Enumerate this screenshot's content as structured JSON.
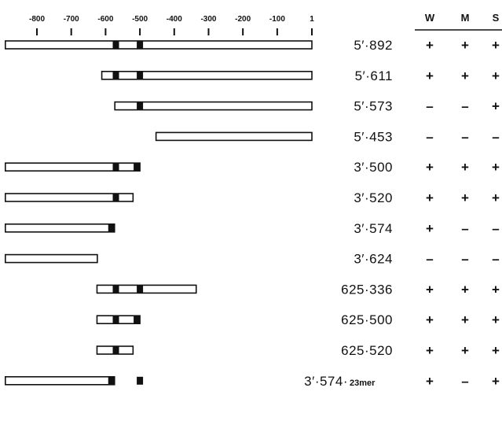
{
  "axis": {
    "ticks": [
      {
        "value": -800,
        "label": "-800"
      },
      {
        "value": -700,
        "label": "-700"
      },
      {
        "value": -600,
        "label": "-600"
      },
      {
        "value": -500,
        "label": "-500"
      },
      {
        "value": -400,
        "label": "-400"
      },
      {
        "value": -300,
        "label": "-300"
      },
      {
        "value": -200,
        "label": "-200"
      },
      {
        "value": -100,
        "label": "-100"
      },
      {
        "value": 1,
        "label": "1"
      }
    ]
  },
  "columns": [
    {
      "key": "W",
      "label": "W"
    },
    {
      "key": "M",
      "label": "M"
    },
    {
      "key": "S",
      "label": "S"
    }
  ],
  "rows": [
    {
      "label": "5′·892",
      "suffix": "",
      "start": -892,
      "end": 1,
      "black_boxes": [
        -570,
        -500
      ],
      "results": [
        "+",
        "+",
        "+"
      ]
    },
    {
      "label": "5′·611",
      "suffix": "",
      "start": -611,
      "end": 1,
      "black_boxes": [
        -570,
        -500
      ],
      "results": [
        "+",
        "+",
        "+"
      ]
    },
    {
      "label": "5′·573",
      "suffix": "",
      "start": -573,
      "end": 1,
      "black_boxes": [
        -500
      ],
      "results": [
        "–",
        "–",
        "+"
      ]
    },
    {
      "label": "5′·453",
      "suffix": "",
      "start": -453,
      "end": 1,
      "black_boxes": [],
      "results": [
        "–",
        "–",
        "–"
      ]
    },
    {
      "label": "3′·500",
      "suffix": "",
      "start": -892,
      "end": -500,
      "black_boxes": [
        -570,
        -500
      ],
      "results": [
        "+",
        "+",
        "+"
      ]
    },
    {
      "label": "3′·520",
      "suffix": "",
      "start": -892,
      "end": -520,
      "black_boxes": [
        -570
      ],
      "results": [
        "+",
        "+",
        "+"
      ]
    },
    {
      "label": "3′·574",
      "suffix": "",
      "start": -892,
      "end": -574,
      "black_boxes": [
        -574
      ],
      "results": [
        "+",
        "–",
        "–"
      ]
    },
    {
      "label": "3′·624",
      "suffix": "",
      "start": -892,
      "end": -624,
      "black_boxes": [],
      "results": [
        "–",
        "–",
        "–"
      ]
    },
    {
      "label": "625·336",
      "suffix": "",
      "start": -625,
      "end": -336,
      "black_boxes": [
        -570,
        -500
      ],
      "results": [
        "+",
        "+",
        "+"
      ]
    },
    {
      "label": "625·500",
      "suffix": "",
      "start": -625,
      "end": -500,
      "black_boxes": [
        -570,
        -500
      ],
      "results": [
        "+",
        "+",
        "+"
      ]
    },
    {
      "label": "625·520",
      "suffix": "",
      "start": -625,
      "end": -520,
      "black_boxes": [
        -570
      ],
      "results": [
        "+",
        "+",
        "+"
      ]
    },
    {
      "label": "3′·574·",
      "suffix": "23mer",
      "start": -892,
      "end": -574,
      "black_boxes": [
        -574
      ],
      "extra_box": -500,
      "results": [
        "+",
        "–",
        "+"
      ]
    }
  ]
}
